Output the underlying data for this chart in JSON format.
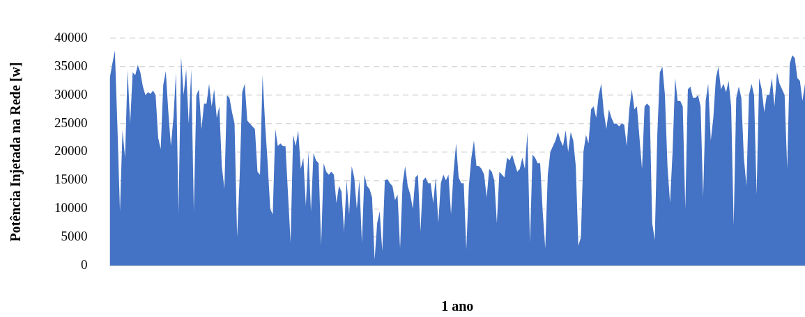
{
  "chart_data": {
    "type": "area",
    "xlabel": "1 ano",
    "ylabel": "Potência Injetada na Rede [w]",
    "categories": [
      null,
      null,
      null,
      null,
      null,
      null,
      null,
      null,
      null,
      null,
      null,
      null,
      null,
      null,
      null,
      null,
      null,
      null,
      null,
      null,
      null,
      null,
      null,
      null,
      null,
      null,
      null,
      null,
      null,
      null,
      null,
      null,
      null,
      null,
      null,
      null,
      null,
      null,
      null,
      null,
      null,
      null,
      null,
      null,
      null,
      null,
      null,
      null,
      null,
      null,
      null,
      null,
      null,
      null,
      null,
      null,
      null,
      null,
      null,
      null,
      null,
      null,
      null,
      null,
      null,
      null,
      null,
      null,
      null,
      null,
      null,
      null,
      null,
      null,
      null,
      null,
      null,
      null,
      null,
      null,
      null,
      null,
      null,
      null,
      null,
      null,
      null,
      null,
      null,
      null,
      null,
      null,
      null,
      null,
      null,
      null,
      null,
      null,
      null,
      null,
      null,
      null,
      null,
      null,
      null,
      null,
      null,
      null,
      null,
      null,
      null,
      null,
      null,
      null,
      null,
      null,
      null,
      null,
      null,
      null,
      null,
      null,
      null,
      null,
      null,
      null,
      null,
      null,
      null,
      null,
      null,
      null,
      null,
      null,
      null,
      null,
      null,
      null,
      null,
      null,
      null,
      null,
      null,
      null,
      null,
      null,
      null,
      null,
      null,
      null,
      null,
      null,
      null,
      null,
      null,
      null,
      null,
      null,
      null,
      null,
      null,
      null,
      null,
      null,
      null,
      null,
      null,
      null,
      null,
      null,
      null,
      null,
      null,
      null,
      null,
      null,
      null,
      null,
      null,
      null,
      null,
      null,
      null,
      null,
      null,
      null,
      null,
      null,
      null,
      null,
      null,
      null,
      null,
      null,
      null,
      null,
      null,
      null,
      null,
      null,
      null,
      null,
      null,
      null,
      null,
      null,
      null,
      null,
      null,
      null,
      null,
      null,
      null,
      null,
      null,
      null,
      null,
      null,
      null,
      null,
      null,
      null,
      null,
      null,
      null,
      null,
      null,
      null,
      null,
      null,
      null,
      null,
      null,
      null,
      null,
      null,
      null,
      null,
      null,
      null,
      null,
      null,
      null,
      null,
      null,
      null,
      null,
      null,
      null,
      null,
      null,
      null,
      null,
      null,
      null,
      null,
      null,
      null,
      null,
      null,
      null,
      null,
      null,
      null,
      null,
      null,
      null,
      null,
      null,
      null,
      null,
      null,
      null,
      null
    ],
    "series": [
      {
        "color": "#4472c4",
        "values": [
          33000,
          35500,
          37800,
          24500,
          9500,
          23800,
          19000,
          34500,
          25000,
          34000,
          33500,
          35300,
          34000,
          31500,
          30000,
          30500,
          30200,
          30800,
          30000,
          22500,
          20500,
          31800,
          34200,
          27000,
          21000,
          26000,
          34000,
          9200,
          36800,
          30000,
          34500,
          25000,
          34500,
          9500,
          30000,
          31000,
          24000,
          28500,
          28500,
          32000,
          28000,
          31000,
          26000,
          28000,
          17500,
          13500,
          30000,
          29500,
          27000,
          25000,
          5000,
          15500,
          30500,
          32000,
          25500,
          25000,
          24500,
          24000,
          16500,
          16000,
          33500,
          25000,
          18000,
          10000,
          9000,
          24000,
          21000,
          21500,
          21000,
          21000,
          12500,
          4000,
          23000,
          21000,
          23800,
          17000,
          19000,
          10500,
          20000,
          9500,
          19800,
          18500,
          18000,
          3500,
          18000,
          16500,
          16000,
          16500,
          16000,
          11000,
          14000,
          13000,
          6000,
          15000,
          9000,
          17500,
          15500,
          10000,
          15000,
          4000,
          16000,
          14000,
          13500,
          12000,
          1000,
          7500,
          9500,
          2500,
          15000,
          15200,
          14500,
          14000,
          11500,
          12500,
          3000,
          14500,
          17500,
          14000,
          12500,
          10000,
          15500,
          16000,
          6000,
          15000,
          15500,
          14500,
          14500,
          11000,
          15500,
          7500,
          14500,
          16000,
          15000,
          16000,
          9000,
          16500,
          21500,
          15500,
          14500,
          14500,
          2800,
          14000,
          19000,
          22000,
          17500,
          17500,
          17000,
          16000,
          12000,
          17000,
          16500,
          15000,
          7500,
          16500,
          16000,
          15500,
          19000,
          18500,
          19500,
          18000,
          16500,
          17000,
          19000,
          17000,
          23500,
          4000,
          19500,
          19000,
          18000,
          18000,
          9500,
          3000,
          16000,
          20000,
          21000,
          22000,
          23500,
          22000,
          21000,
          23800,
          20000,
          23500,
          22000,
          17500,
          3500,
          5000,
          20000,
          23000,
          21500,
          27500,
          28000,
          26000,
          30000,
          32000,
          27000,
          24000,
          27500,
          26000,
          25000,
          25000,
          24500,
          25000,
          24800,
          21000,
          27500,
          31000,
          27500,
          28000,
          22500,
          17000,
          28000,
          28500,
          28000,
          7500,
          4500,
          23000,
          34000,
          35000,
          30000,
          17500,
          11000,
          20000,
          33000,
          29000,
          29000,
          28000,
          10000,
          31000,
          31500,
          29500,
          29500,
          30000,
          28000,
          12000,
          29000,
          32000,
          22000,
          26000,
          33000,
          35000,
          31000,
          32000,
          30500,
          32500,
          28000,
          7000,
          29500,
          31500,
          29500,
          19000,
          14000,
          30000,
          32000,
          30000,
          12500,
          33000,
          31000,
          27000,
          30000,
          30000,
          33000,
          28000,
          34000,
          32000,
          31000,
          30000,
          17000,
          35500,
          37000,
          36500,
          33000,
          32500,
          29000,
          32000
        ]
      }
    ],
    "ylim": [
      0,
      40000
    ],
    "yticks": [
      0,
      5000,
      10000,
      15000,
      20000,
      25000,
      30000,
      35000,
      40000
    ],
    "grid": "y",
    "legend": false,
    "tick_labels": "y"
  }
}
